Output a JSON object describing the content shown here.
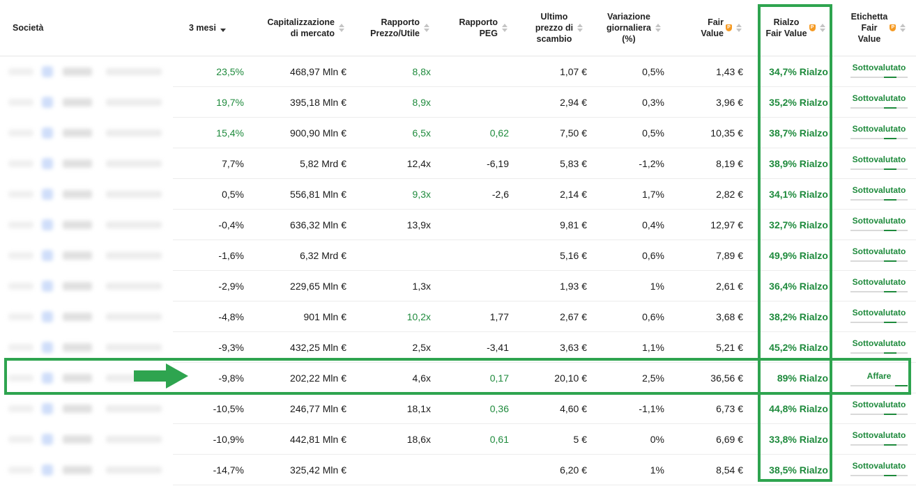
{
  "header": {
    "company": "Società",
    "m3": "3 mesi",
    "market_cap": "Capitalizzazione\ndi mercato",
    "pe": "Rapporto\nPrezzo/Utile",
    "peg": "Rapporto\nPEG",
    "last_price": "Ultimo\nprezzo di\nscambio",
    "daily_change": "Variazione\ngiornaliera\n(%)",
    "fair_value": "Fair\nValue",
    "upside": "Rialzo\nFair Value",
    "label": "Etichetta\nFair\nValue"
  },
  "rows": [
    {
      "m3": "23,5%",
      "m3_green": true,
      "cap": "468,97 Mln €",
      "pe": "8,8x",
      "pe_green": true,
      "peg": "",
      "peg_green": false,
      "price": "1,07 €",
      "chg": "0,5%",
      "fv": "1,43 €",
      "up": "34,7% Rialzo",
      "label": "Sottovalutato"
    },
    {
      "m3": "19,7%",
      "m3_green": true,
      "cap": "395,18 Mln €",
      "pe": "8,9x",
      "pe_green": true,
      "peg": "",
      "peg_green": false,
      "price": "2,94 €",
      "chg": "0,3%",
      "fv": "3,96 €",
      "up": "35,2% Rialzo",
      "label": "Sottovalutato"
    },
    {
      "m3": "15,4%",
      "m3_green": true,
      "cap": "900,90 Mln €",
      "pe": "6,5x",
      "pe_green": true,
      "peg": "0,62",
      "peg_green": true,
      "price": "7,50 €",
      "chg": "0,5%",
      "fv": "10,35 €",
      "up": "38,7% Rialzo",
      "label": "Sottovalutato"
    },
    {
      "m3": "7,7%",
      "m3_green": false,
      "cap": "5,82 Mrd €",
      "pe": "12,4x",
      "pe_green": false,
      "peg": "-6,19",
      "peg_green": false,
      "price": "5,83 €",
      "chg": "-1,2%",
      "fv": "8,19 €",
      "up": "38,9% Rialzo",
      "label": "Sottovalutato"
    },
    {
      "m3": "0,5%",
      "m3_green": false,
      "cap": "556,81 Mln €",
      "pe": "9,3x",
      "pe_green": true,
      "peg": "-2,6",
      "peg_green": false,
      "price": "2,14 €",
      "chg": "1,7%",
      "fv": "2,82 €",
      "up": "34,1% Rialzo",
      "label": "Sottovalutato"
    },
    {
      "m3": "-0,4%",
      "m3_green": false,
      "cap": "636,32 Mln €",
      "pe": "13,9x",
      "pe_green": false,
      "peg": "",
      "peg_green": false,
      "price": "9,81 €",
      "chg": "0,4%",
      "fv": "12,97 €",
      "up": "32,7% Rialzo",
      "label": "Sottovalutato"
    },
    {
      "m3": "-1,6%",
      "m3_green": false,
      "cap": "6,32 Mrd €",
      "pe": "",
      "pe_green": false,
      "peg": "",
      "peg_green": false,
      "price": "5,16 €",
      "chg": "0,6%",
      "fv": "7,89 €",
      "up": "49,9% Rialzo",
      "label": "Sottovalutato"
    },
    {
      "m3": "-2,9%",
      "m3_green": false,
      "cap": "229,65 Mln €",
      "pe": "1,3x",
      "pe_green": false,
      "peg": "",
      "peg_green": false,
      "price": "1,93 €",
      "chg": "1%",
      "fv": "2,61 €",
      "up": "36,4% Rialzo",
      "label": "Sottovalutato"
    },
    {
      "m3": "-4,8%",
      "m3_green": false,
      "cap": "901 Mln €",
      "pe": "10,2x",
      "pe_green": true,
      "peg": "1,77",
      "peg_green": false,
      "price": "2,67 €",
      "chg": "0,6%",
      "fv": "3,68 €",
      "up": "38,2% Rialzo",
      "label": "Sottovalutato"
    },
    {
      "m3": "-9,3%",
      "m3_green": false,
      "cap": "432,25 Mln €",
      "pe": "2,5x",
      "pe_green": false,
      "peg": "-3,41",
      "peg_green": false,
      "price": "3,63 €",
      "chg": "1,1%",
      "fv": "5,21 €",
      "up": "45,2% Rialzo",
      "label": "Sottovalutato"
    },
    {
      "m3": "-9,8%",
      "m3_green": false,
      "cap": "202,22 Mln €",
      "pe": "4,6x",
      "pe_green": false,
      "peg": "0,17",
      "peg_green": true,
      "price": "20,10 €",
      "chg": "2,5%",
      "fv": "36,56 €",
      "up": "89% Rialzo",
      "label": "Affare"
    },
    {
      "m3": "-10,5%",
      "m3_green": false,
      "cap": "246,77 Mln €",
      "pe": "18,1x",
      "pe_green": false,
      "peg": "0,36",
      "peg_green": true,
      "price": "4,60 €",
      "chg": "-1,1%",
      "fv": "6,73 €",
      "up": "44,8% Rialzo",
      "label": "Sottovalutato"
    },
    {
      "m3": "-10,9%",
      "m3_green": false,
      "cap": "442,81 Mln €",
      "pe": "18,6x",
      "pe_green": false,
      "peg": "0,61",
      "peg_green": true,
      "price": "5 €",
      "chg": "0%",
      "fv": "6,69 €",
      "up": "33,8% Rialzo",
      "label": "Sottovalutato"
    },
    {
      "m3": "-14,7%",
      "m3_green": false,
      "cap": "325,42 Mln €",
      "pe": "",
      "pe_green": false,
      "peg": "",
      "peg_green": false,
      "price": "6,20 €",
      "chg": "1%",
      "fv": "8,54 €",
      "up": "38,5% Rialzo",
      "label": "Sottovalutato"
    }
  ],
  "colors": {
    "positive": "#1e8a3c",
    "highlight": "#2ea44f",
    "pro": "#f59a23"
  },
  "highlight_row_index": 10
}
